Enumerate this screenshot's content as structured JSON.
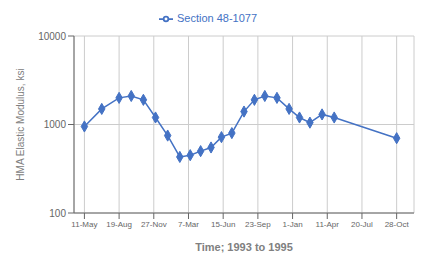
{
  "chart_data": {
    "type": "line",
    "x": [
      0,
      0.5,
      1.0,
      1.35,
      1.7,
      2.05,
      2.4,
      2.75,
      3.05,
      3.35,
      3.65,
      3.95,
      4.25,
      4.6,
      4.9,
      5.2,
      5.55,
      5.9,
      6.2,
      6.5,
      6.85,
      7.2,
      9.0
    ],
    "series": [
      {
        "name": "Section 48-1077",
        "color": "#4472C4",
        "marker": "diamond",
        "values": [
          950,
          1500,
          2000,
          2100,
          1900,
          1200,
          750,
          430,
          450,
          500,
          550,
          720,
          800,
          1400,
          1900,
          2100,
          2000,
          1500,
          1200,
          1050,
          1300,
          1200,
          700
        ]
      }
    ],
    "xlabel": "Time; 1993 to 1995",
    "ylabel": "HMA Elastic Modulus, ksi",
    "xlim": [
      -0.3,
      9.5
    ],
    "xticks": [
      {
        "value": 0,
        "label": "11-May"
      },
      {
        "value": 1,
        "label": "19-Aug"
      },
      {
        "value": 2,
        "label": "27-Nov"
      },
      {
        "value": 3,
        "label": "7-Mar"
      },
      {
        "value": 4,
        "label": "15-Jun"
      },
      {
        "value": 5,
        "label": "23-Sep"
      },
      {
        "value": 6,
        "label": "1-Jan"
      },
      {
        "value": 7,
        "label": "11-Apr"
      },
      {
        "value": 8,
        "label": "20-Jul"
      },
      {
        "value": 9,
        "label": "28-Oct"
      }
    ],
    "ylim": [
      100,
      10000
    ],
    "yticks": [
      100,
      1000,
      10000
    ],
    "log": "y",
    "grid": true,
    "legend": "top"
  }
}
